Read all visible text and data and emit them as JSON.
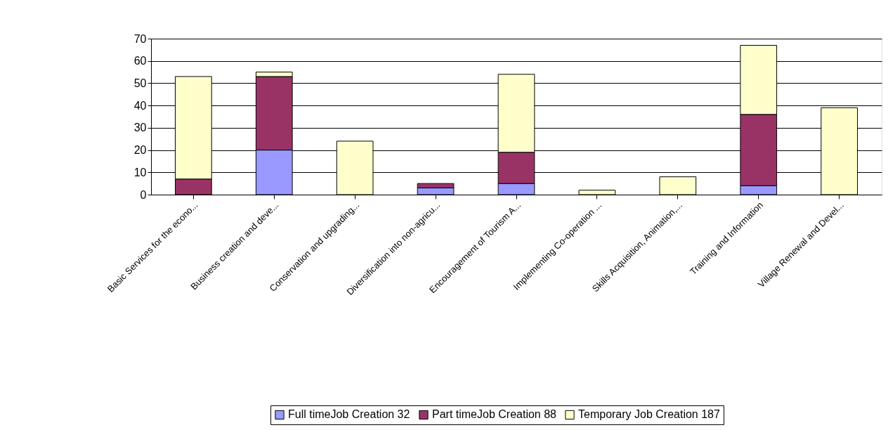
{
  "chart_data": {
    "type": "bar",
    "stacked": true,
    "categories": [
      "Basic Services for the econo...",
      "Business creation and deve...",
      "Conservation and upgrading...",
      "Diversification into non-agricu...",
      "Encouragement of Tourism A...",
      "Implementing Co-operation  ...",
      "Skills Acquisition, Animation,...",
      "Training and Information",
      "Village Renewal and Devel..."
    ],
    "series": [
      {
        "name": "Full timeJob Creation 32",
        "color": "#9999ff",
        "values": [
          0,
          20,
          0,
          3,
          5,
          0,
          0,
          4,
          0
        ]
      },
      {
        "name": "Part timeJob Creation 88",
        "color": "#993366",
        "values": [
          7,
          33,
          0,
          2,
          14,
          0,
          0,
          32,
          0
        ]
      },
      {
        "name": "Temporary Job Creation 187",
        "color": "#ffffcc",
        "values": [
          46,
          2,
          24,
          0,
          35,
          2,
          8,
          31,
          39
        ]
      }
    ],
    "ylim": [
      0,
      70
    ],
    "yticks": [
      0,
      10,
      20,
      30,
      40,
      50,
      60,
      70
    ],
    "grid": "y",
    "legend": "bottom"
  }
}
